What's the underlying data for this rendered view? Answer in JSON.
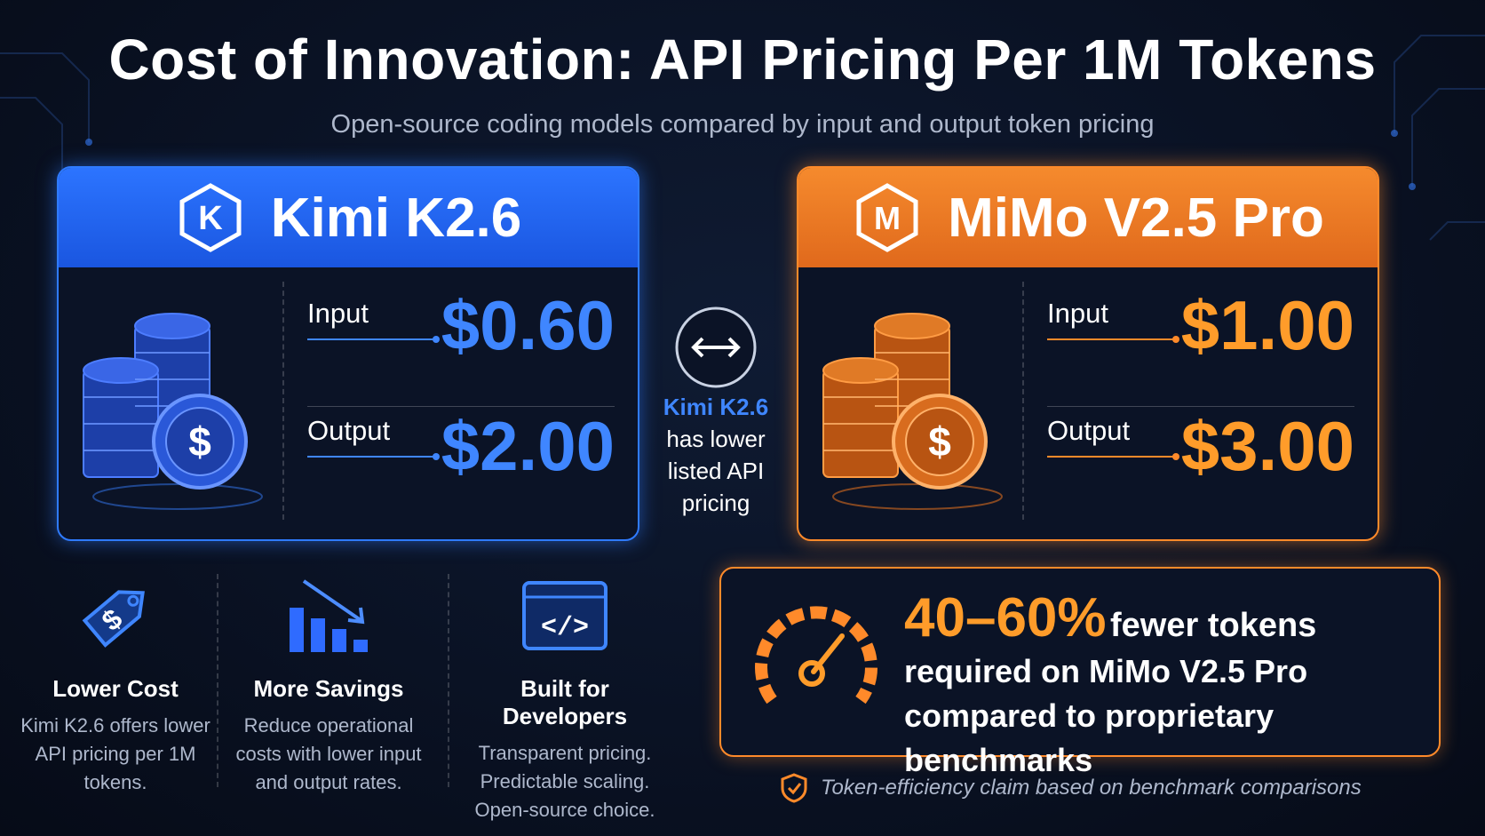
{
  "header": {
    "title": "Cost of Innovation: API Pricing Per 1M Tokens",
    "subtitle": "Open-source coding models compared by input and output token pricing"
  },
  "cards": [
    {
      "name": "Kimi K2.6",
      "logo_letter": "K",
      "input_label": "Input",
      "input_price": "$0.60",
      "output_label": "Output",
      "output_price": "$2.00",
      "accent": "#2f7bff"
    },
    {
      "name": "MiMo V2.5 Pro",
      "logo_letter": "M",
      "input_label": "Input",
      "input_price": "$1.00",
      "output_label": "Output",
      "output_price": "$3.00",
      "accent": "#ff8a2a"
    }
  ],
  "comparison": {
    "icon": "double-arrow-icon",
    "highlight": "Kimi K2.6",
    "text": "has lower listed API pricing"
  },
  "features": [
    {
      "icon": "price-tag-icon",
      "title": "Lower Cost",
      "desc": "Kimi K2.6 offers lower API pricing per 1M tokens."
    },
    {
      "icon": "bar-chart-down-icon",
      "title": "More Savings",
      "desc": "Reduce operational costs with lower input and output rates."
    },
    {
      "icon": "code-window-icon",
      "title": "Built for Developers",
      "desc": "Transparent pricing. Predictable scaling. Open-source choice."
    }
  ],
  "claim": {
    "icon": "gauge-icon",
    "big": "40–60%",
    "line1": "fewer tokens",
    "line2": "required on MiMo V2.5 Pro",
    "line3": "compared to proprietary benchmarks"
  },
  "footnote": {
    "icon": "shield-check-icon",
    "text": "Token-efficiency claim based on benchmark comparisons"
  }
}
